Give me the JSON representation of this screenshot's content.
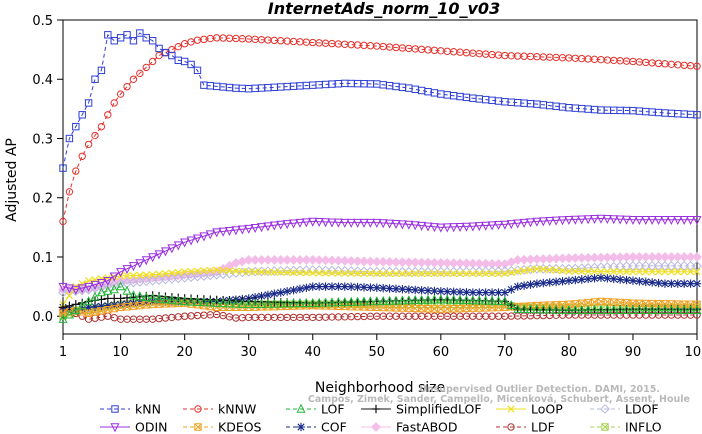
{
  "chart_data": {
    "type": "line",
    "title": "InternetAds_norm_10_v03",
    "xlabel": "Neighborhood size",
    "ylabel": "Adjusted AP",
    "xlim": [
      1,
      100
    ],
    "ylim": [
      -0.03,
      0.5
    ],
    "xticks": [
      1,
      10,
      20,
      30,
      40,
      50,
      60,
      70,
      80,
      90,
      100
    ],
    "yticks": [
      0.0,
      0.1,
      0.2,
      0.3,
      0.4,
      0.5
    ],
    "ytick_labels": [
      "0.0",
      "0.1",
      "0.2",
      "0.3",
      "0.4",
      "0.5"
    ],
    "legend_position": "bottom",
    "watermark": [
      "Unsupervised Outlier Detection. DAMI, 2015.",
      "Campos, Zimek, Sander, Campello, Micenková, Schubert, Assent, Houle"
    ],
    "series": [
      {
        "name": "kNN",
        "color": "#2e3ed6",
        "marker": "square",
        "dash": "4,3",
        "points": [
          [
            1,
            0.25
          ],
          [
            2,
            0.3
          ],
          [
            3,
            0.32
          ],
          [
            4,
            0.34
          ],
          [
            5,
            0.36
          ],
          [
            6,
            0.4
          ],
          [
            7,
            0.415
          ],
          [
            8,
            0.475
          ],
          [
            9,
            0.465
          ],
          [
            10,
            0.47
          ],
          [
            11,
            0.475
          ],
          [
            12,
            0.465
          ],
          [
            13,
            0.478
          ],
          [
            14,
            0.47
          ],
          [
            15,
            0.465
          ],
          [
            16,
            0.452
          ],
          [
            17,
            0.445
          ],
          [
            18,
            0.44
          ],
          [
            19,
            0.432
          ],
          [
            20,
            0.43
          ],
          [
            21,
            0.425
          ],
          [
            22,
            0.415
          ],
          [
            23,
            0.39
          ],
          [
            25,
            0.388
          ],
          [
            28,
            0.385
          ],
          [
            30,
            0.384
          ],
          [
            35,
            0.387
          ],
          [
            40,
            0.39
          ],
          [
            45,
            0.393
          ],
          [
            50,
            0.392
          ],
          [
            55,
            0.385
          ],
          [
            60,
            0.375
          ],
          [
            65,
            0.368
          ],
          [
            70,
            0.362
          ],
          [
            75,
            0.358
          ],
          [
            80,
            0.352
          ],
          [
            85,
            0.348
          ],
          [
            90,
            0.347
          ],
          [
            95,
            0.343
          ],
          [
            100,
            0.34
          ]
        ]
      },
      {
        "name": "kNNW",
        "color": "#e5312b",
        "marker": "circle",
        "dash": "4,3",
        "points": [
          [
            1,
            0.16
          ],
          [
            2,
            0.21
          ],
          [
            3,
            0.245
          ],
          [
            4,
            0.27
          ],
          [
            5,
            0.29
          ],
          [
            6,
            0.305
          ],
          [
            7,
            0.32
          ],
          [
            8,
            0.34
          ],
          [
            9,
            0.36
          ],
          [
            10,
            0.375
          ],
          [
            12,
            0.4
          ],
          [
            14,
            0.42
          ],
          [
            16,
            0.44
          ],
          [
            18,
            0.45
          ],
          [
            20,
            0.46
          ],
          [
            22,
            0.466
          ],
          [
            25,
            0.47
          ],
          [
            30,
            0.468
          ],
          [
            40,
            0.462
          ],
          [
            50,
            0.456
          ],
          [
            60,
            0.448
          ],
          [
            70,
            0.44
          ],
          [
            80,
            0.436
          ],
          [
            90,
            0.43
          ],
          [
            100,
            0.422
          ]
        ]
      },
      {
        "name": "ODIN",
        "color": "#9b30e0",
        "marker": "triangle-down",
        "dash": "",
        "points": [
          [
            1,
            0.05
          ],
          [
            3,
            0.045
          ],
          [
            5,
            0.05
          ],
          [
            8,
            0.06
          ],
          [
            10,
            0.075
          ],
          [
            15,
            0.1
          ],
          [
            20,
            0.125
          ],
          [
            25,
            0.142
          ],
          [
            30,
            0.148
          ],
          [
            35,
            0.155
          ],
          [
            40,
            0.16
          ],
          [
            45,
            0.158
          ],
          [
            50,
            0.158
          ],
          [
            55,
            0.155
          ],
          [
            60,
            0.15
          ],
          [
            65,
            0.152
          ],
          [
            70,
            0.155
          ],
          [
            75,
            0.16
          ],
          [
            80,
            0.163
          ],
          [
            85,
            0.165
          ],
          [
            90,
            0.163
          ],
          [
            100,
            0.163
          ]
        ]
      },
      {
        "name": "LOF",
        "color": "#22b63a",
        "marker": "triangle-up",
        "dash": "4,3",
        "points": [
          [
            1,
            -0.005
          ],
          [
            3,
            0.01
          ],
          [
            5,
            0.025
          ],
          [
            7,
            0.04
          ],
          [
            9,
            0.045
          ],
          [
            10,
            0.05
          ],
          [
            12,
            0.035
          ],
          [
            15,
            0.03
          ],
          [
            20,
            0.025
          ],
          [
            25,
            0.022
          ],
          [
            30,
            0.02
          ],
          [
            40,
            0.022
          ],
          [
            50,
            0.025
          ],
          [
            60,
            0.028
          ],
          [
            70,
            0.025
          ],
          [
            72,
            0.012
          ],
          [
            80,
            0.01
          ],
          [
            90,
            0.01
          ],
          [
            100,
            0.01
          ]
        ]
      },
      {
        "name": "SimplifiedLOF",
        "color": "#111111",
        "marker": "plus",
        "dash": "",
        "points": [
          [
            1,
            0.015
          ],
          [
            3,
            0.02
          ],
          [
            5,
            0.025
          ],
          [
            8,
            0.03
          ],
          [
            10,
            0.03
          ],
          [
            15,
            0.035
          ],
          [
            20,
            0.03
          ],
          [
            30,
            0.025
          ],
          [
            40,
            0.022
          ],
          [
            50,
            0.025
          ],
          [
            60,
            0.028
          ],
          [
            70,
            0.025
          ],
          [
            72,
            0.012
          ],
          [
            80,
            0.01
          ],
          [
            90,
            0.012
          ],
          [
            100,
            0.012
          ]
        ]
      },
      {
        "name": "LoOP",
        "color": "#f0e020",
        "marker": "x",
        "dash": "",
        "points": [
          [
            1,
            0.02
          ],
          [
            3,
            0.05
          ],
          [
            5,
            0.06
          ],
          [
            10,
            0.068
          ],
          [
            15,
            0.07
          ],
          [
            20,
            0.075
          ],
          [
            25,
            0.078
          ],
          [
            30,
            0.075
          ],
          [
            40,
            0.073
          ],
          [
            50,
            0.072
          ],
          [
            60,
            0.072
          ],
          [
            70,
            0.072
          ],
          [
            75,
            0.08
          ],
          [
            80,
            0.076
          ],
          [
            90,
            0.075
          ],
          [
            100,
            0.075
          ]
        ]
      },
      {
        "name": "LDOF",
        "color": "#b8b8e0",
        "marker": "diamond",
        "dash": "4,3",
        "points": [
          [
            1,
            0.04
          ],
          [
            5,
            0.045
          ],
          [
            10,
            0.055
          ],
          [
            15,
            0.06
          ],
          [
            20,
            0.065
          ],
          [
            25,
            0.07
          ],
          [
            30,
            0.075
          ],
          [
            40,
            0.078
          ],
          [
            50,
            0.075
          ],
          [
            60,
            0.075
          ],
          [
            70,
            0.076
          ],
          [
            75,
            0.08
          ],
          [
            80,
            0.08
          ],
          [
            90,
            0.085
          ],
          [
            100,
            0.085
          ]
        ]
      },
      {
        "name": "KDEOS",
        "color": "#f0a020",
        "marker": "square-x",
        "dash": "4,3",
        "points": [
          [
            1,
            0.005
          ],
          [
            3,
            0.01
          ],
          [
            5,
            0.005
          ],
          [
            10,
            0.015
          ],
          [
            15,
            0.02
          ],
          [
            20,
            0.022
          ],
          [
            25,
            0.015
          ],
          [
            30,
            0.015
          ],
          [
            40,
            0.018
          ],
          [
            50,
            0.015
          ],
          [
            60,
            0.012
          ],
          [
            70,
            0.015
          ],
          [
            75,
            0.018
          ],
          [
            80,
            0.02
          ],
          [
            85,
            0.025
          ],
          [
            90,
            0.022
          ],
          [
            100,
            0.02
          ]
        ]
      },
      {
        "name": "COF",
        "color": "#1a2a8a",
        "marker": "asterisk",
        "dash": "4,3",
        "points": [
          [
            1,
            0.015
          ],
          [
            3,
            0.01
          ],
          [
            5,
            0.015
          ],
          [
            10,
            0.02
          ],
          [
            15,
            0.025
          ],
          [
            20,
            0.025
          ],
          [
            25,
            0.025
          ],
          [
            30,
            0.03
          ],
          [
            35,
            0.04
          ],
          [
            40,
            0.05
          ],
          [
            45,
            0.05
          ],
          [
            50,
            0.048
          ],
          [
            55,
            0.045
          ],
          [
            60,
            0.042
          ],
          [
            65,
            0.04
          ],
          [
            70,
            0.04
          ],
          [
            72,
            0.05
          ],
          [
            75,
            0.055
          ],
          [
            80,
            0.06
          ],
          [
            85,
            0.065
          ],
          [
            90,
            0.06
          ],
          [
            95,
            0.055
          ],
          [
            100,
            0.055
          ]
        ]
      },
      {
        "name": "FastABOD",
        "color": "#f4bce8",
        "marker": "diamond-filled",
        "dash": "",
        "points": [
          [
            1,
            0.045
          ],
          [
            5,
            0.045
          ],
          [
            10,
            0.06
          ],
          [
            15,
            0.065
          ],
          [
            20,
            0.07
          ],
          [
            25,
            0.075
          ],
          [
            28,
            0.09
          ],
          [
            30,
            0.095
          ],
          [
            40,
            0.095
          ],
          [
            50,
            0.092
          ],
          [
            60,
            0.09
          ],
          [
            70,
            0.088
          ],
          [
            72,
            0.095
          ],
          [
            80,
            0.098
          ],
          [
            90,
            0.1
          ],
          [
            100,
            0.1
          ]
        ]
      },
      {
        "name": "LDF",
        "color": "#b03030",
        "marker": "circle-dot",
        "dash": "4,3",
        "points": [
          [
            1,
            0.01
          ],
          [
            3,
            0.005
          ],
          [
            5,
            -0.005
          ],
          [
            8,
            0.0
          ],
          [
            10,
            -0.005
          ],
          [
            15,
            -0.005
          ],
          [
            20,
            0.0
          ],
          [
            25,
            0.003
          ],
          [
            28,
            -0.003
          ],
          [
            30,
            -0.002
          ],
          [
            40,
            -0.002
          ],
          [
            50,
            0.0
          ],
          [
            60,
            0.0
          ],
          [
            70,
            0.0
          ],
          [
            80,
            0.002
          ],
          [
            90,
            0.002
          ],
          [
            100,
            0.002
          ]
        ]
      },
      {
        "name": "INFLO",
        "color": "#a8d050",
        "marker": "square-x",
        "dash": "4,3",
        "points": [
          [
            1,
            0.0
          ],
          [
            3,
            0.005
          ],
          [
            5,
            0.01
          ],
          [
            10,
            0.02
          ],
          [
            15,
            0.025
          ],
          [
            20,
            0.025
          ],
          [
            25,
            0.022
          ],
          [
            30,
            0.02
          ],
          [
            40,
            0.02
          ],
          [
            50,
            0.02
          ],
          [
            60,
            0.02
          ],
          [
            70,
            0.02
          ],
          [
            72,
            0.015
          ],
          [
            80,
            0.015
          ],
          [
            90,
            0.015
          ],
          [
            100,
            0.015
          ]
        ]
      }
    ]
  }
}
